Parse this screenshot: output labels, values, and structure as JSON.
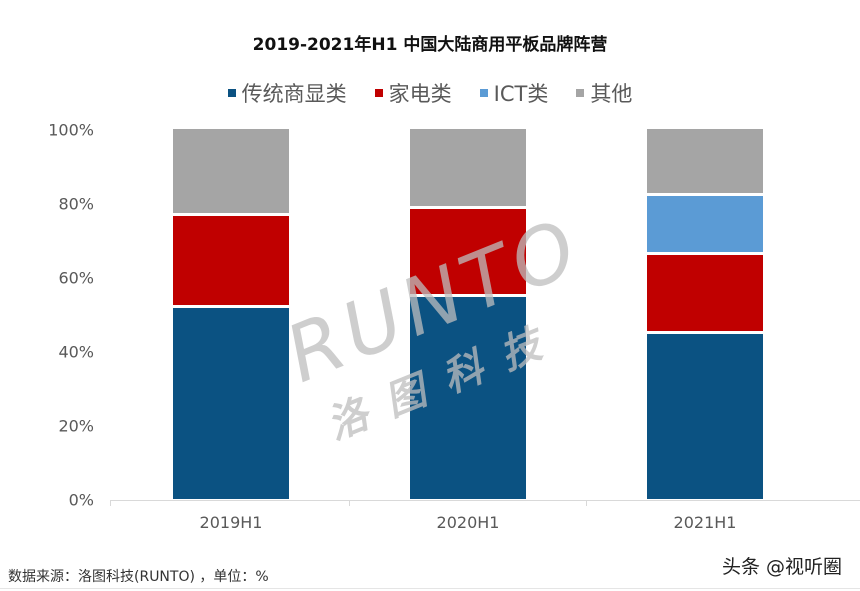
{
  "title": "2019-2021年H1 中国大陆商用平板品牌阵营",
  "legend": [
    {
      "label": "传统商显类",
      "color": "#0b5282"
    },
    {
      "label": "家电类",
      "color": "#c00000"
    },
    {
      "label": "ICT类",
      "color": "#5b9bd5"
    },
    {
      "label": "其他",
      "color": "#a5a5a5"
    }
  ],
  "y_ticks": [
    "100%",
    "80%",
    "60%",
    "40%",
    "20%",
    "0%"
  ],
  "x_labels": [
    "2019H1",
    "2020H1",
    "2021H1"
  ],
  "watermark": {
    "en": "RUNTO",
    "cn": "洛图科技"
  },
  "footer": {
    "source": "数据来源：洛图科技(RUNTO) ，单位：%",
    "credit": "头条 @视听圈"
  },
  "chart_data": {
    "type": "bar",
    "stacked": true,
    "percent_stacked": true,
    "title": "2019-2021年H1 中国大陆商用平板品牌阵营",
    "xlabel": "",
    "ylabel": "",
    "ylim": [
      0,
      100
    ],
    "y_tick_labels": [
      "0%",
      "20%",
      "40%",
      "60%",
      "80%",
      "100%"
    ],
    "legend_position": "top",
    "grid": false,
    "categories": [
      "2019H1",
      "2020H1",
      "2021H1"
    ],
    "series": [
      {
        "name": "传统商显类",
        "color": "#0b5282",
        "values": [
          51.5,
          54.5,
          44.5
        ]
      },
      {
        "name": "家电类",
        "color": "#c00000",
        "values": [
          25.0,
          24.0,
          21.5
        ]
      },
      {
        "name": "ICT类",
        "color": "#5b9bd5",
        "values": [
          0,
          0,
          16.0
        ]
      },
      {
        "name": "其他",
        "color": "#a5a5a5",
        "values": [
          23.5,
          21.5,
          18.0
        ]
      }
    ],
    "annotations": [
      "数据来源：洛图科技(RUNTO) ，单位：%"
    ]
  }
}
